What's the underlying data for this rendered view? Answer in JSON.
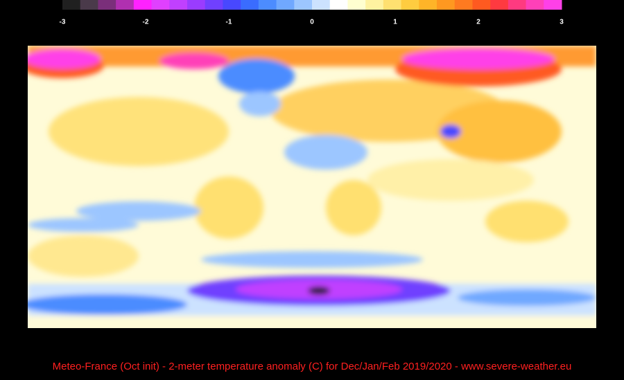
{
  "colorbar": {
    "range": [
      -3,
      3
    ],
    "ticks": [
      -3,
      -2,
      -1,
      0,
      1,
      2,
      3
    ],
    "colors": [
      "#202020",
      "#4a3a4a",
      "#7a2f7a",
      "#b030b0",
      "#ff22ff",
      "#e040ff",
      "#c040ff",
      "#9a3cff",
      "#7040ff",
      "#4848ff",
      "#3a6cff",
      "#4c8cff",
      "#70a8ff",
      "#9cc6ff",
      "#cce2ff",
      "#ffffff",
      "#ffffd0",
      "#fff2a0",
      "#ffe070",
      "#ffcc40",
      "#ffb428",
      "#ff9820",
      "#ff7a20",
      "#ff5a20",
      "#ff3a40",
      "#ff3a80",
      "#ff40b8",
      "#ff40e8"
    ]
  },
  "caption": "Meteo-France (Oct init) -  2-meter temperature anomaly (C)  for Dec/Jan/Feb 2019/2020  -  www.severe-weather.eu"
}
